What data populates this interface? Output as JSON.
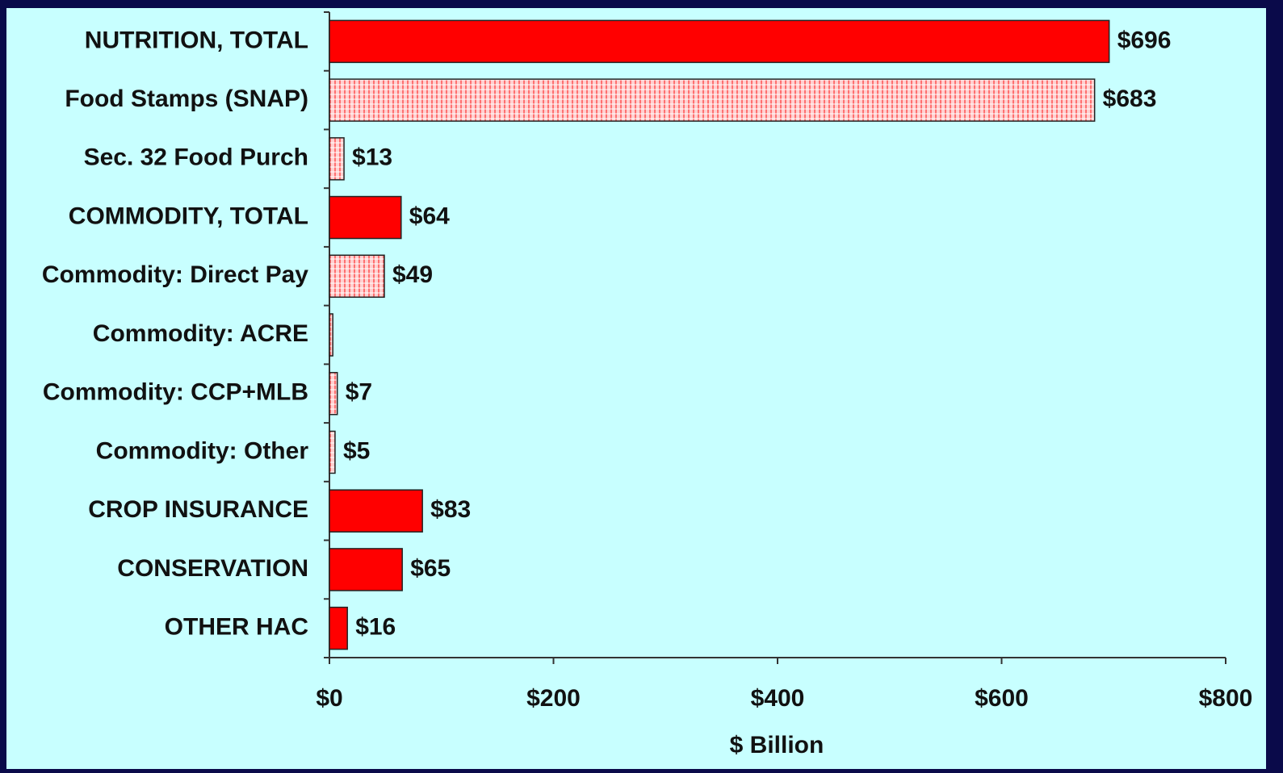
{
  "chart_data": {
    "type": "barh",
    "categories": [
      "NUTRITION, TOTAL",
      "Food Stamps (SNAP)",
      "Sec. 32 Food Purch",
      "COMMODITY, TOTAL",
      "Commodity: Direct Pay",
      "Commodity: ACRE",
      "Commodity: CCP+MLB",
      "Commodity: Other",
      "CROP INSURANCE",
      "CONSERVATION",
      "OTHER HAC"
    ],
    "values": [
      696,
      683,
      13,
      64,
      49,
      3,
      7,
      5,
      83,
      65,
      16
    ],
    "value_labels": [
      "$696",
      "$683",
      "$13",
      "$64",
      "$49",
      null,
      "$7",
      "$5",
      "$83",
      "$65",
      "$16"
    ],
    "bar_styles": [
      "solid",
      "hatched",
      "hatched",
      "solid",
      "hatched",
      "hatched",
      "hatched",
      "hatched",
      "solid",
      "solid",
      "solid"
    ],
    "color": "#ff0000",
    "xlabel": "$ Billion",
    "xlim": [
      0,
      800
    ],
    "xticks": [
      {
        "value": 0,
        "label": "$0"
      },
      {
        "value": 200,
        "label": "$200"
      },
      {
        "value": 400,
        "label": "$400"
      },
      {
        "value": 600,
        "label": "$600"
      },
      {
        "value": 800,
        "label": "$800"
      }
    ]
  }
}
